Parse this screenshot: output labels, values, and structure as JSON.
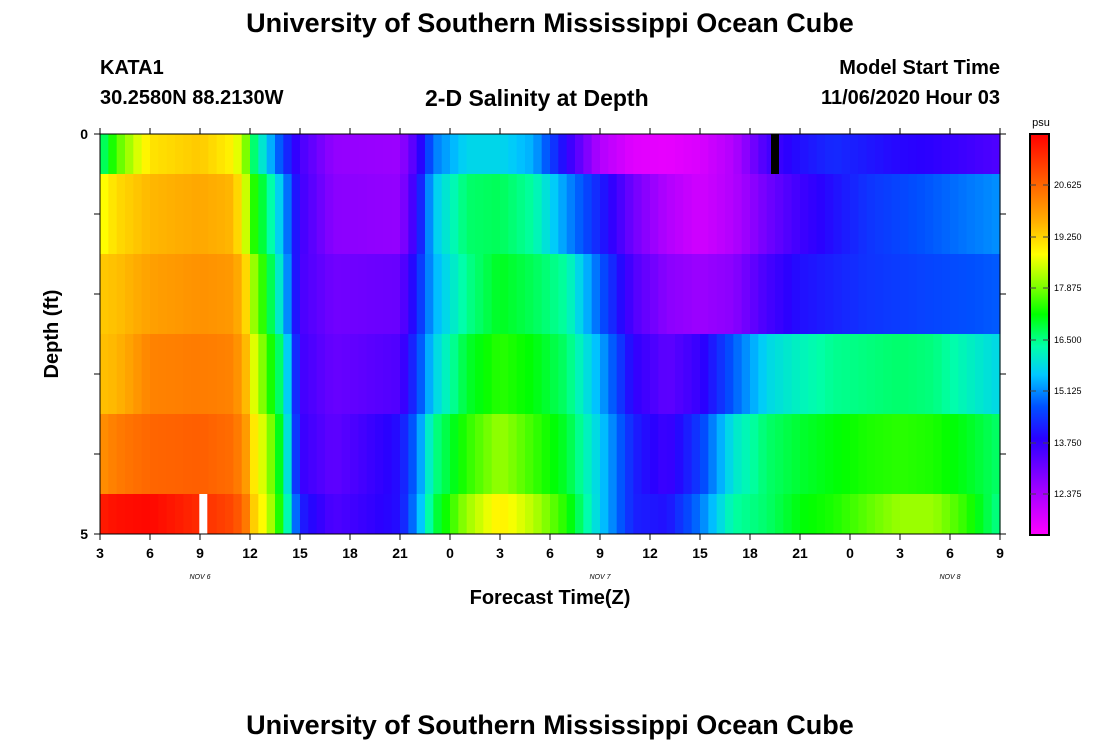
{
  "header": {
    "title": "University of Southern Mississippi Ocean Cube",
    "footer_title": "University of Southern Mississippi Ocean Cube",
    "station": "KATA1",
    "coords": "30.2580N 88.2130W",
    "plot_title": "2-D Salinity at Depth",
    "model_start_label": "Model Start Time",
    "model_start_value": "11/06/2020 Hour 03"
  },
  "colorbar": {
    "unit": "psu",
    "labels": [
      "20.625",
      "19.250",
      "17.875",
      "16.500",
      "15.125",
      "13.750",
      "12.375"
    ]
  },
  "chart_data": {
    "type": "heatmap",
    "title": "2-D Salinity at Depth",
    "xlabel": "Forecast Time(Z)",
    "ylabel": "Depth (ft)",
    "x_ticks": [
      "3",
      "6",
      "9",
      "12",
      "15",
      "18",
      "21",
      "0",
      "3",
      "6",
      "9",
      "12",
      "15",
      "18",
      "21",
      "0",
      "3",
      "6",
      "9"
    ],
    "x_date_labels": [
      "NOV 6",
      "NOV 7",
      "NOV 8"
    ],
    "y_ticks": [
      "0",
      "5"
    ],
    "ylim": [
      0,
      5
    ],
    "x_range_hours": [
      0,
      54
    ],
    "value_range": [
      11.0,
      22.0
    ],
    "depth_rows": [
      0.25,
      1,
      2,
      3,
      4,
      4.75
    ],
    "keyframes": [
      {
        "h": 0,
        "v": [
          16.3,
          18.6,
          19.3,
          19.4,
          20.0,
          21.6
        ]
      },
      {
        "h": 1,
        "v": [
          17.5,
          19.1,
          19.4,
          19.5,
          20.3,
          21.8
        ]
      },
      {
        "h": 3,
        "v": [
          19.0,
          19.5,
          19.8,
          20.2,
          20.6,
          21.9
        ]
      },
      {
        "h": 6,
        "v": [
          19.3,
          19.7,
          20.0,
          20.3,
          20.7,
          21.4
        ]
      },
      {
        "h": 8,
        "v": [
          18.8,
          19.5,
          19.9,
          20.2,
          20.5,
          21.0
        ]
      },
      {
        "h": 8.7,
        "v": [
          18.0,
          18.5,
          19.3,
          19.6,
          20.0,
          20.5
        ]
      },
      {
        "h": 9,
        "v": [
          16.8,
          17.5,
          18.3,
          18.8,
          19.2,
          19.5
        ]
      },
      {
        "h": 10,
        "v": [
          15.5,
          16.5,
          17.0,
          17.5,
          18.2,
          18.5
        ]
      },
      {
        "h": 11,
        "v": [
          14.3,
          15.2,
          15.5,
          16.2,
          16.5,
          16.8
        ]
      },
      {
        "h": 12,
        "v": [
          13.3,
          13.4,
          13.3,
          13.4,
          13.5,
          14.0
        ]
      },
      {
        "h": 14,
        "v": [
          12.4,
          12.5,
          12.8,
          12.9,
          13.0,
          13.2
        ]
      },
      {
        "h": 18,
        "v": [
          12.3,
          12.4,
          12.9,
          13.2,
          13.8,
          13.8
        ]
      },
      {
        "h": 19,
        "v": [
          13.3,
          13.6,
          14.0,
          14.3,
          14.8,
          15.0
        ]
      },
      {
        "h": 20,
        "v": [
          14.8,
          15.4,
          15.2,
          15.5,
          16.3,
          16.6
        ]
      },
      {
        "h": 22,
        "v": [
          15.6,
          16.5,
          16.3,
          16.8,
          17.3,
          18.0
        ]
      },
      {
        "h": 24,
        "v": [
          15.6,
          16.6,
          16.9,
          17.3,
          18.0,
          18.9
        ]
      },
      {
        "h": 26,
        "v": [
          15.2,
          16.2,
          16.6,
          17.0,
          17.4,
          18.2
        ]
      },
      {
        "h": 28,
        "v": [
          13.6,
          15.0,
          16.2,
          16.5,
          16.8,
          17.2
        ]
      },
      {
        "h": 30,
        "v": [
          12.0,
          14.0,
          14.6,
          15.2,
          15.5,
          15.5
        ]
      },
      {
        "h": 32,
        "v": [
          11.4,
          12.8,
          13.2,
          13.6,
          14.0,
          14.0
        ]
      },
      {
        "h": 34,
        "v": [
          11.3,
          12.0,
          12.5,
          13.0,
          13.4,
          13.8
        ]
      },
      {
        "h": 36,
        "v": [
          11.5,
          11.6,
          12.3,
          13.5,
          14.3,
          14.8
        ]
      },
      {
        "h": 38,
        "v": [
          12.0,
          12.0,
          12.5,
          14.6,
          15.8,
          16.2
        ]
      },
      {
        "h": 40,
        "v": [
          13.3,
          12.8,
          13.3,
          15.6,
          16.5,
          16.5
        ]
      },
      {
        "h": 42,
        "v": [
          13.8,
          13.4,
          13.8,
          16.0,
          16.8,
          17.0
        ]
      },
      {
        "h": 44,
        "v": [
          14.1,
          13.8,
          14.0,
          16.3,
          17.0,
          17.2
        ]
      },
      {
        "h": 46,
        "v": [
          13.9,
          14.2,
          14.2,
          16.4,
          17.2,
          17.6
        ]
      },
      {
        "h": 48,
        "v": [
          13.7,
          14.4,
          14.3,
          16.5,
          17.3,
          18.0
        ]
      },
      {
        "h": 50,
        "v": [
          13.6,
          14.6,
          14.4,
          16.4,
          17.2,
          18.0
        ]
      },
      {
        "h": 52,
        "v": [
          13.4,
          14.8,
          14.5,
          16.0,
          16.9,
          17.3
        ]
      },
      {
        "h": 54,
        "v": [
          13.2,
          15.0,
          14.6,
          15.6,
          16.5,
          16.3
        ]
      }
    ],
    "markers": [
      {
        "color": "#ffffff",
        "depth_row": 5,
        "h": 6.2
      },
      {
        "color": "#000000",
        "depth_row": 0,
        "h": 40.5
      }
    ]
  }
}
